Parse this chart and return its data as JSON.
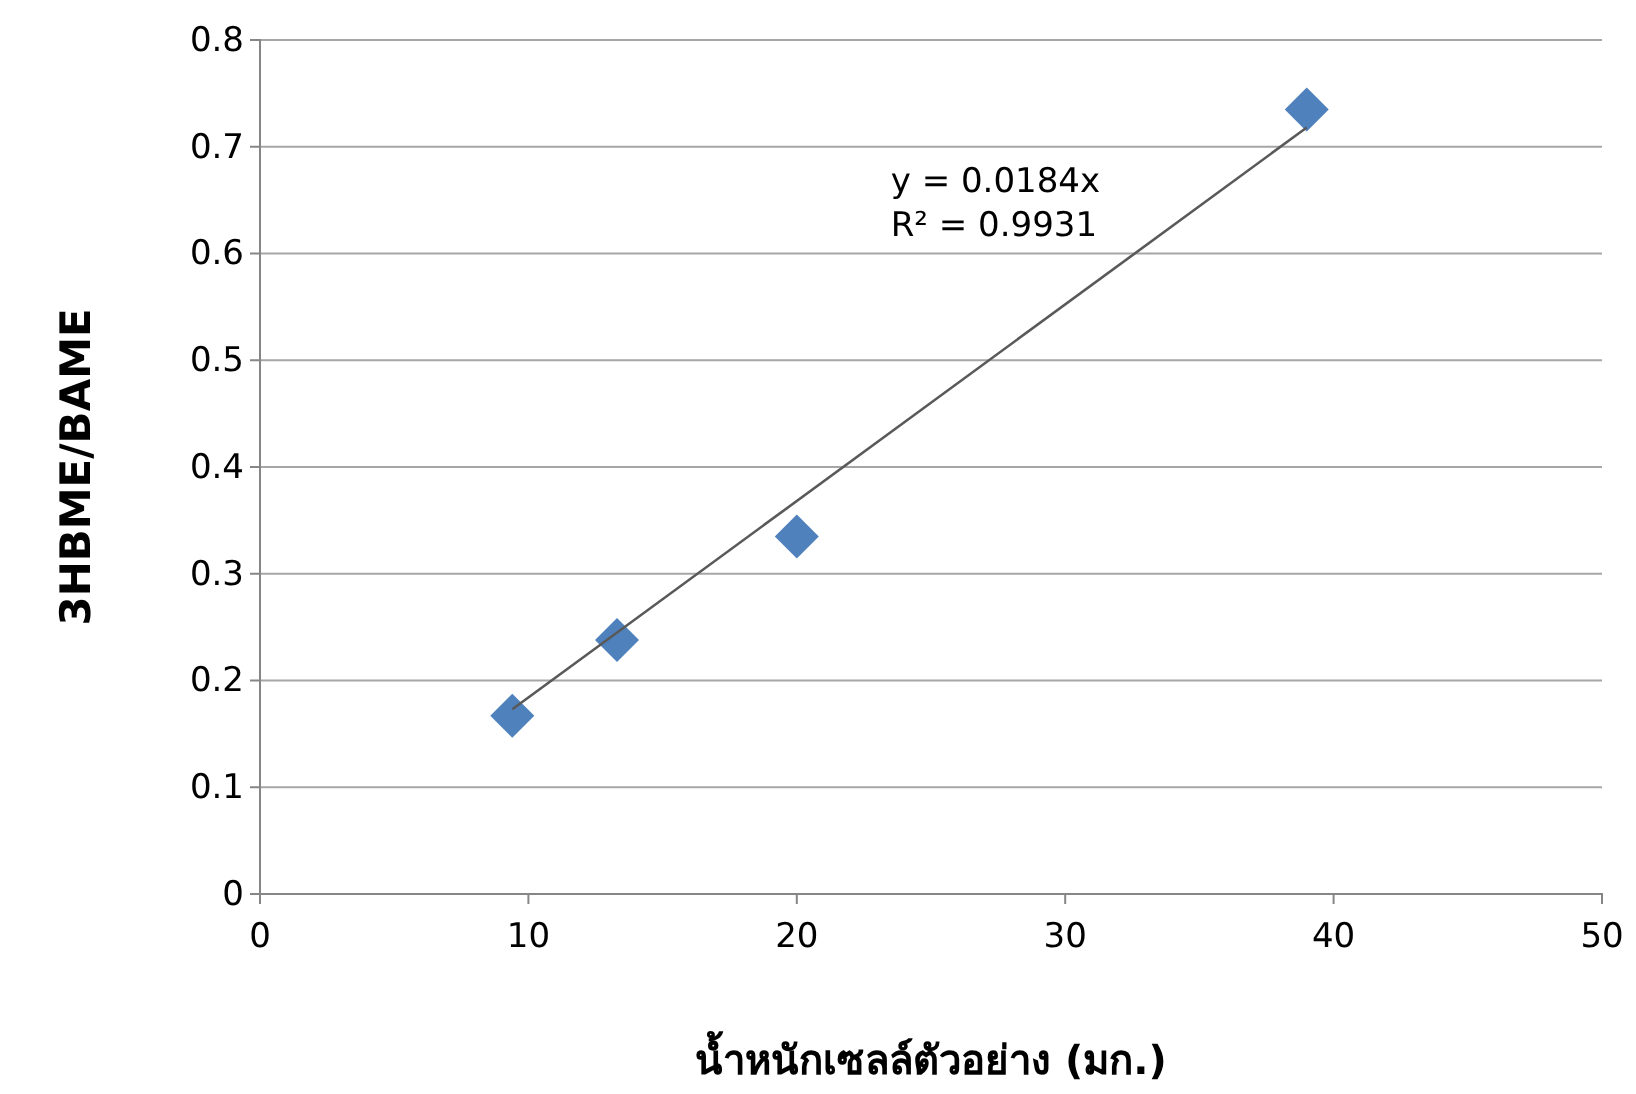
{
  "chart_data": {
    "type": "scatter",
    "xlabel": "น้ำหนักเซลล์ตัวอย่าง (มก.)",
    "ylabel": "3HBME/BAME",
    "x": [
      9.4,
      13.3,
      20.0,
      39.0
    ],
    "series": [
      {
        "color": "#4f81bd",
        "values": [
          0.167,
          0.238,
          0.335,
          0.735
        ],
        "marker": "diamond"
      },
      {
        "type": "line",
        "color": "#595959",
        "x": [
          9.4,
          39.0
        ],
        "values": [
          0.173,
          0.718
        ],
        "marker": "none",
        "line_style": "solid"
      }
    ],
    "annotations": [
      "y = 0.0184x\nR² = 0.9931"
    ],
    "xlim": [
      0,
      50
    ],
    "xticks": [
      0,
      10,
      20,
      30,
      40,
      50
    ],
    "ylim": [
      0,
      0.8
    ],
    "yticks": [
      0,
      0.1,
      0.2,
      0.3,
      0.4,
      0.5,
      0.6,
      0.7,
      0.8
    ],
    "grid": "y"
  }
}
